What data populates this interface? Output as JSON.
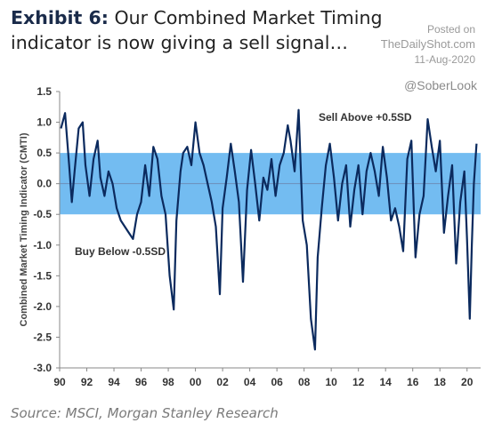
{
  "header": {
    "exhibit": "Exhibit 6:",
    "title": "Our Combined Market Timing indicator is now giving a sell signal…",
    "posted_on": "Posted on",
    "site": "TheDailyShot.com",
    "date": "11-Aug-2020",
    "handle": "@SoberLook"
  },
  "source": "Source: MSCI, Morgan Stanley Research",
  "colors": {
    "line": "#0b2a5e",
    "band": "#5ab0ef",
    "zero": "#6c8fb8"
  },
  "chart_data": {
    "type": "line",
    "ylabel": "Combined Market Timing Indicator (CMTI)",
    "ylim": [
      -3.0,
      1.5
    ],
    "yticks": [
      1.5,
      1.0,
      0.5,
      0.0,
      -0.5,
      -1.0,
      -1.5,
      -2.0,
      -2.5,
      -3.0
    ],
    "ytick_labels": [
      "1.5",
      "1.0",
      "0.5",
      "0.0",
      "-0.5",
      "-1.0",
      "-1.5",
      "-2.0",
      "-2.5",
      "-3.0"
    ],
    "xlim": [
      1990,
      2021
    ],
    "xticks": [
      1990,
      1992,
      1994,
      1996,
      1998,
      2000,
      2002,
      2004,
      2006,
      2008,
      2010,
      2012,
      2014,
      2016,
      2018,
      2020
    ],
    "xtick_labels": [
      "90",
      "92",
      "94",
      "96",
      "98",
      "00",
      "02",
      "04",
      "06",
      "08",
      "10",
      "12",
      "14",
      "16",
      "18",
      "20"
    ],
    "band": [
      -0.5,
      0.5
    ],
    "annotations": {
      "sell": "Sell Above +0.5SD",
      "buy": "Buy Below -0.5SD"
    },
    "series": [
      {
        "x": [
          1990.1,
          1990.4,
          1990.7,
          1990.9,
          1991.1,
          1991.4,
          1991.7,
          1991.9,
          1992.2,
          1992.5,
          1992.8,
          1993.0,
          1993.3,
          1993.6,
          1993.9,
          1994.2,
          1994.5,
          1994.8,
          1995.1,
          1995.4,
          1995.7,
          1996.0,
          1996.3,
          1996.6,
          1996.9,
          1997.2,
          1997.5,
          1997.8,
          1998.1,
          1998.4,
          1998.6,
          1998.9,
          1999.1,
          1999.4,
          1999.7,
          2000.0,
          2000.3,
          2000.6,
          2000.9,
          2001.2,
          2001.5,
          2001.8,
          2002.0,
          2002.3,
          2002.6,
          2002.9,
          2003.2,
          2003.5,
          2003.8,
          2004.1,
          2004.4,
          2004.7,
          2005.0,
          2005.3,
          2005.6,
          2005.9,
          2006.2,
          2006.5,
          2006.8,
          2007.0,
          2007.3,
          2007.6,
          2007.9,
          2008.2,
          2008.5,
          2008.8,
          2009.0,
          2009.3,
          2009.6,
          2009.9,
          2010.2,
          2010.5,
          2010.8,
          2011.1,
          2011.4,
          2011.7,
          2012.0,
          2012.3,
          2012.6,
          2012.9,
          2013.2,
          2013.5,
          2013.8,
          2014.1,
          2014.4,
          2014.7,
          2015.0,
          2015.3,
          2015.6,
          2015.9,
          2016.2,
          2016.5,
          2016.8,
          2017.1,
          2017.4,
          2017.7,
          2018.0,
          2018.3,
          2018.6,
          2018.9,
          2019.2,
          2019.5,
          2019.8,
          2020.0,
          2020.2,
          2020.35,
          2020.5,
          2020.7
        ],
        "y": [
          0.9,
          1.15,
          0.3,
          -0.3,
          0.2,
          0.9,
          1.0,
          0.3,
          -0.2,
          0.4,
          0.7,
          0.1,
          -0.2,
          0.2,
          0.0,
          -0.4,
          -0.6,
          -0.7,
          -0.8,
          -0.9,
          -0.5,
          -0.3,
          0.3,
          -0.2,
          0.6,
          0.4,
          -0.2,
          -0.5,
          -1.5,
          -2.05,
          -0.6,
          0.2,
          0.5,
          0.6,
          0.3,
          1.0,
          0.5,
          0.3,
          0.0,
          -0.3,
          -0.7,
          -1.8,
          -0.4,
          0.1,
          0.65,
          0.2,
          -0.3,
          -1.6,
          -0.1,
          0.55,
          0.0,
          -0.6,
          0.1,
          -0.1,
          0.4,
          -0.2,
          0.3,
          0.5,
          0.95,
          0.7,
          0.2,
          1.2,
          -0.6,
          -1.0,
          -2.2,
          -2.7,
          -1.2,
          -0.4,
          0.3,
          0.65,
          0.1,
          -0.6,
          0.0,
          0.3,
          -0.7,
          -0.1,
          0.3,
          -0.5,
          0.2,
          0.5,
          0.2,
          -0.2,
          0.6,
          0.1,
          -0.6,
          -0.4,
          -0.7,
          -1.1,
          0.4,
          0.7,
          -1.2,
          -0.5,
          -0.2,
          1.05,
          0.6,
          0.2,
          0.7,
          -0.8,
          -0.2,
          0.3,
          -1.3,
          -0.3,
          0.2,
          -0.9,
          -2.2,
          -1.0,
          0.0,
          0.65
        ]
      }
    ]
  }
}
